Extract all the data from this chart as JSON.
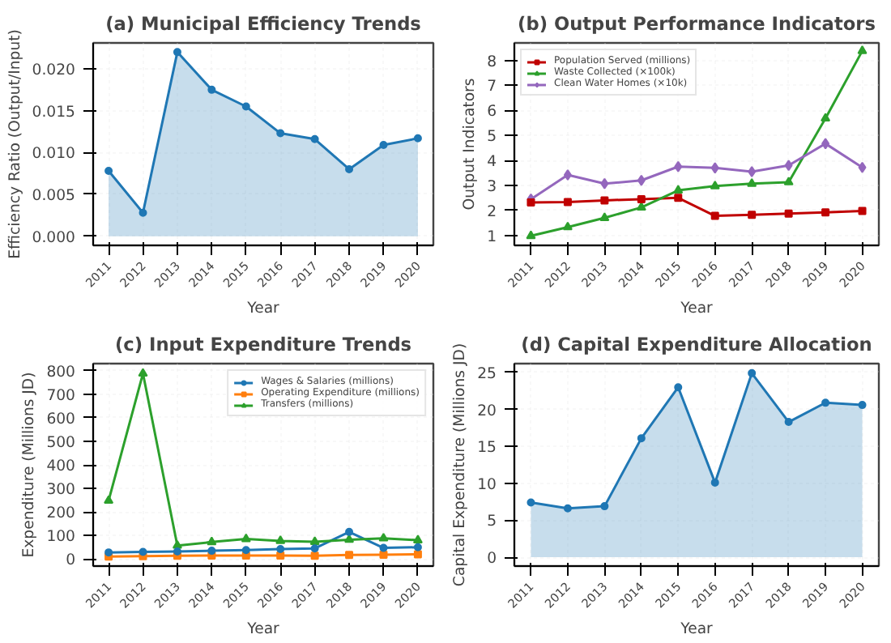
{
  "chart_data": [
    {
      "type": "area",
      "title": "(a) Municipal Efficiency Trends",
      "xlabel": "Year",
      "ylabel": "Efficiency Ratio (Output/Input)",
      "categories": [
        "2011",
        "2012",
        "2013",
        "2014",
        "2015",
        "2016",
        "2017",
        "2018",
        "2019",
        "2020"
      ],
      "series": [
        {
          "color": "#1f77b4",
          "marker": "circle",
          "values": [
            0.0078,
            0.0028,
            0.022,
            0.0175,
            0.0155,
            0.0123,
            0.0116,
            0.008,
            0.0109,
            0.0117
          ]
        }
      ],
      "ylim": [
        -0.0011,
        0.0231
      ],
      "yticks": [
        {
          "value": 0,
          "label": "0.000"
        },
        {
          "value": 0.005,
          "label": "0.005"
        },
        {
          "value": 0.01,
          "label": "0.010"
        },
        {
          "value": 0.015,
          "label": "0.015"
        },
        {
          "value": 0.02,
          "label": "0.020"
        }
      ],
      "grid": true
    },
    {
      "type": "line",
      "title": "(b) Output Performance Indicators",
      "xlabel": "Year",
      "ylabel": "Output Indicators",
      "categories": [
        "2011",
        "2012",
        "2013",
        "2014",
        "2015",
        "2016",
        "2017",
        "2018",
        "2019",
        "2020"
      ],
      "series": [
        {
          "name": "Population Served (millions)",
          "color": "#c00000",
          "marker": "square",
          "values": [
            2.32,
            2.33,
            2.4,
            2.45,
            2.5,
            1.78,
            1.82,
            1.87,
            1.92,
            1.98
          ]
        },
        {
          "name": "Waste Collected (×100k)",
          "color": "#2ca02c",
          "marker": "triangle",
          "values": [
            0.98,
            1.33,
            1.7,
            2.12,
            2.8,
            2.97,
            3.07,
            3.13,
            5.68,
            8.38
          ]
        },
        {
          "name": "Clean Water Homes (×10k)",
          "color": "#9467bd",
          "marker": "diamond",
          "values": [
            2.45,
            3.42,
            3.07,
            3.2,
            3.75,
            3.7,
            3.55,
            3.8,
            4.67,
            3.72
          ]
        }
      ],
      "ylim": [
        0.6,
        8.7
      ],
      "yticks": [
        1,
        2,
        3,
        4,
        5,
        6,
        7,
        8
      ],
      "grid": true,
      "legend": "top left"
    },
    {
      "type": "line",
      "title": "(c) Input Expenditure Trends",
      "xlabel": "Year",
      "ylabel": "Expenditure (Millions JD)",
      "categories": [
        "2011",
        "2012",
        "2013",
        "2014",
        "2015",
        "2016",
        "2017",
        "2018",
        "2019",
        "2020"
      ],
      "series": [
        {
          "name": "Wages & Salaries (millions)",
          "color": "#1f77b4",
          "marker": "circle",
          "values": [
            28,
            30,
            32,
            35,
            38,
            42,
            45,
            115,
            47,
            50
          ]
        },
        {
          "name": "Operating Expenditure (millions)",
          "color": "#ff7f0e",
          "marker": "square",
          "values": [
            10,
            12,
            14,
            15,
            15,
            15,
            14,
            17,
            18,
            20
          ]
        },
        {
          "name": "Transfers (millions)",
          "color": "#2ca02c",
          "marker": "triangle",
          "values": [
            248,
            788,
            57,
            72,
            85,
            77,
            73,
            82,
            88,
            80
          ]
        }
      ],
      "ylim": [
        -30,
        830
      ],
      "yticks": [
        0,
        100,
        200,
        300,
        400,
        500,
        600,
        700,
        800
      ],
      "grid": true,
      "legend": "top right"
    },
    {
      "type": "area",
      "title": "(d) Capital Expenditure Allocation",
      "xlabel": "Year",
      "ylabel": "Capital Expenditure (Millions JD)",
      "categories": [
        "2011",
        "2012",
        "2013",
        "2014",
        "2015",
        "2016",
        "2017",
        "2018",
        "2019",
        "2020"
      ],
      "series": [
        {
          "color": "#1f77b4",
          "marker": "circle",
          "values": [
            7.4,
            6.6,
            6.9,
            16.1,
            23.0,
            10.1,
            24.9,
            18.3,
            20.9,
            20.6
          ]
        }
      ],
      "ylim": [
        -1.2,
        26.2
      ],
      "yticks": [
        0,
        5,
        10,
        15,
        20,
        25
      ],
      "grid": true
    }
  ]
}
